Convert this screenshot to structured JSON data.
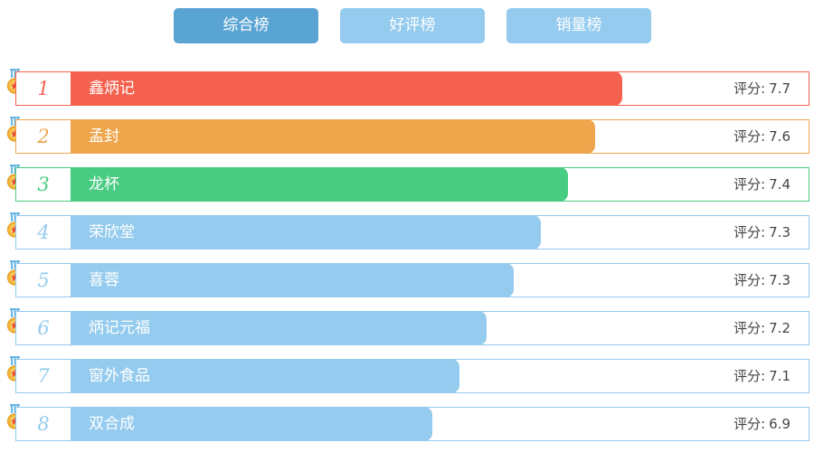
{
  "tabs": [
    {
      "label": "综合榜",
      "active": true
    },
    {
      "label": "好评榜",
      "active": false
    },
    {
      "label": "销量榜",
      "active": false
    }
  ],
  "score_label": "评分:",
  "score_max": 10,
  "colors": {
    "rank1": "#f5614f",
    "rank2": "#eea54b",
    "rank3": "#48cc82",
    "default": "#94cbee"
  },
  "rows": [
    {
      "rank": "1",
      "name": "鑫炳记",
      "score": "7.7",
      "score_value": 7.7
    },
    {
      "rank": "2",
      "name": "孟封",
      "score": "7.6",
      "score_value": 7.6
    },
    {
      "rank": "3",
      "name": "龙杯",
      "score": "7.4",
      "score_value": 7.4
    },
    {
      "rank": "4",
      "name": "荣欣堂",
      "score": "7.3",
      "score_value": 7.3
    },
    {
      "rank": "5",
      "name": "喜蓉",
      "score": "7.3",
      "score_value": 7.3
    },
    {
      "rank": "6",
      "name": "炳记元福",
      "score": "7.2",
      "score_value": 7.2
    },
    {
      "rank": "7",
      "name": "窗外食品",
      "score": "7.1",
      "score_value": 7.1
    },
    {
      "rank": "8",
      "name": "双合成",
      "score": "6.9",
      "score_value": 6.9
    }
  ]
}
